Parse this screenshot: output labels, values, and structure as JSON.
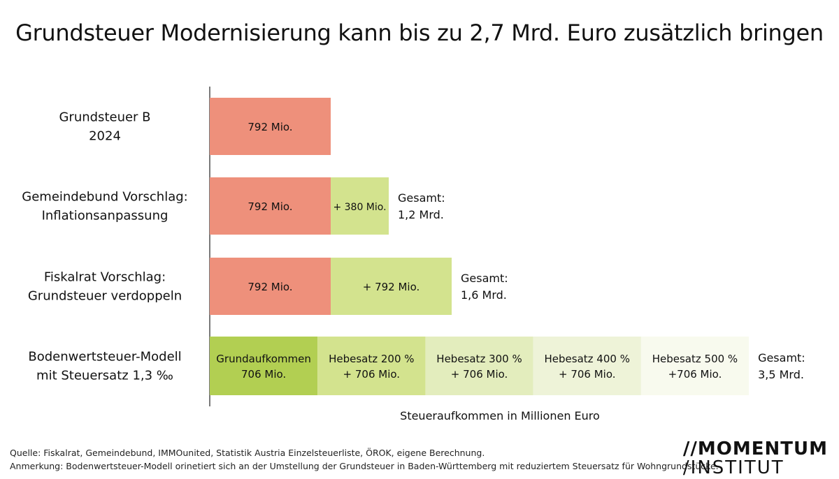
{
  "title": "Grundsteuer Modernisierung kann bis zu 2,7 Mrd. Euro zusätzlich bringen",
  "colors": {
    "base": "#ee907b",
    "increment": "#d3e38e",
    "grundaufkommen": "#b2cf52",
    "hebesatz200": "#d3e38e",
    "hebesatz300": "#e3edbd",
    "hebesatz400": "#eef3d8",
    "hebesatz500": "#f8faee"
  },
  "chart_data": {
    "type": "bar",
    "orientation": "horizontal",
    "stacked": true,
    "title": "Grundsteuer Modernisierung kann bis zu 2,7 Mrd. Euro zusätzlich bringen",
    "xlabel": "Steueraufkommen in Millionen Euro",
    "ylabel": "",
    "grid": false,
    "legend": "none",
    "rows": [
      {
        "label": [
          "Grundsteuer B",
          "2024"
        ],
        "segments": [
          {
            "value": 792,
            "text": [
              "792 Mio."
            ],
            "color_key": "base"
          }
        ],
        "total": []
      },
      {
        "label": [
          "Gemeindebund Vorschlag:",
          "Inflationsanpassung"
        ],
        "segments": [
          {
            "value": 792,
            "text": [
              "792 Mio."
            ],
            "color_key": "base"
          },
          {
            "value": 380,
            "text": [
              "+ 380 Mio."
            ],
            "color_key": "increment"
          }
        ],
        "total": [
          "Gesamt:",
          "1,2 Mrd."
        ]
      },
      {
        "label": [
          "Fiskalrat Vorschlag:",
          "Grundsteuer verdoppeln"
        ],
        "segments": [
          {
            "value": 792,
            "text": [
              "792 Mio."
            ],
            "color_key": "base"
          },
          {
            "value": 792,
            "text": [
              "+ 792 Mio."
            ],
            "color_key": "increment"
          }
        ],
        "total": [
          "Gesamt:",
          "1,6 Mrd."
        ]
      },
      {
        "label": [
          "Bodenwertsteuer-Modell",
          "mit Steuersatz 1,3 ‰"
        ],
        "segments": [
          {
            "value": 706,
            "text": [
              "Grundaufkommen",
              "706 Mio."
            ],
            "color_key": "grundaufkommen"
          },
          {
            "value": 706,
            "text": [
              "Hebesatz 200 %",
              "+ 706 Mio."
            ],
            "color_key": "hebesatz200"
          },
          {
            "value": 706,
            "text": [
              "Hebesatz 300 %",
              "+ 706 Mio."
            ],
            "color_key": "hebesatz300"
          },
          {
            "value": 706,
            "text": [
              "Hebesatz 400 %",
              "+ 706 Mio."
            ],
            "color_key": "hebesatz400"
          },
          {
            "value": 706,
            "text": [
              "Hebesatz 500 %",
              "+706 Mio."
            ],
            "color_key": "hebesatz500"
          }
        ],
        "total": [
          "Gesamt:",
          "3,5 Mrd."
        ]
      }
    ]
  },
  "footer": {
    "source": "Quelle: Fiskalrat, Gemeindebund, IMMOunited, Statistik Austria Einzelsteuerliste, ÖROK, eigene Berechnung.",
    "note": "Anmerkung: Bodenwertsteuer-Modell orinetiert sich an der Umstellung der Grundsteuer in Baden-Württemberg mit reduziertem Steuersatz für Wohngrundstücke."
  },
  "logo": {
    "line1": "MOMENTUM",
    "line2": "INSTITUT"
  }
}
